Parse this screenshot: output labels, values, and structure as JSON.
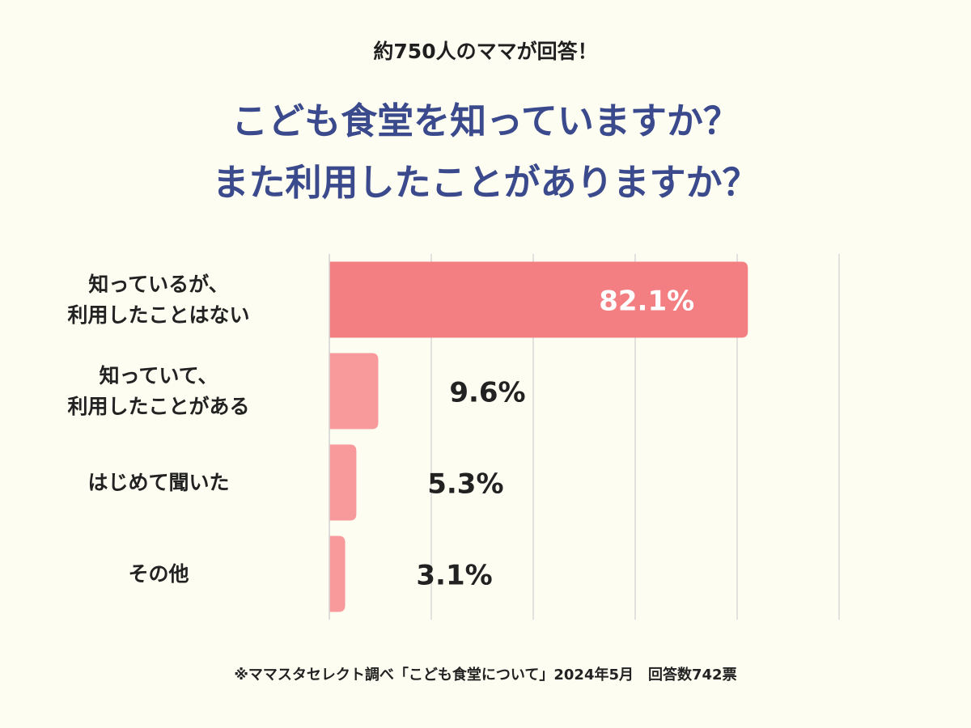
{
  "header": {
    "subtitle": "約750人のママが回答！",
    "title_line1": "こども食堂を知っていますか？",
    "title_line2": "また利用したことがありますか？"
  },
  "footnote": "※ママスタセレクト調べ「こども食堂について」2024年5月　回答数742票",
  "colors": {
    "title": "#3a4a8c",
    "highlight_bar": "#f47f82",
    "bar": "#f89a9c",
    "highlight_label": "#ffffff",
    "label": "#222222",
    "grid": "#d8d8d8",
    "background": "#fdfdf1"
  },
  "chart_data": {
    "type": "bar",
    "orientation": "horizontal",
    "categories": [
      [
        "知っているが、",
        "利用したことはない"
      ],
      [
        "知っていて、",
        "利用したことがある"
      ],
      [
        "はじめて聞いた"
      ],
      [
        "その他"
      ]
    ],
    "values": [
      82.1,
      9.6,
      5.3,
      3.1
    ],
    "value_labels": [
      "82.1%",
      "9.6%",
      "5.3%",
      "3.1%"
    ],
    "highlight_index": 0,
    "xlim": [
      0,
      100
    ],
    "grid": true,
    "xlabel": "",
    "ylabel": ""
  }
}
